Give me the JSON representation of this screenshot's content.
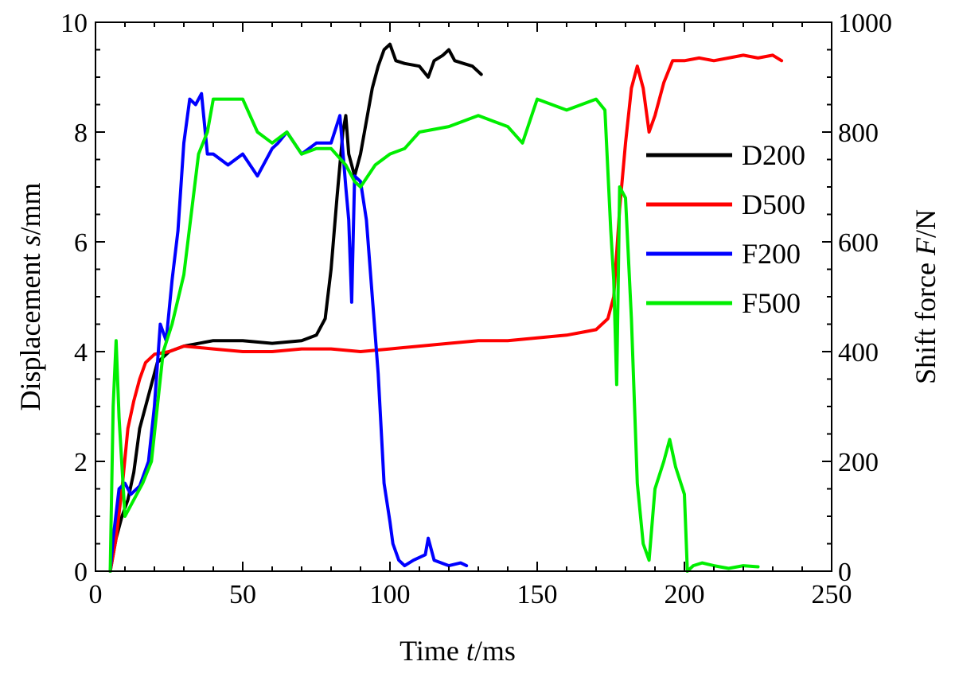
{
  "chart_data": {
    "type": "line",
    "xlabel_prefix": "Time ",
    "xlabel_var": "t",
    "xlabel_unit": "/ms",
    "ylabel_prefix": "Displacement ",
    "ylabel_var": "s",
    "ylabel_unit": "/mm",
    "y2label_prefix": "Shift force ",
    "y2label_var": "F",
    "y2label_unit": "/N",
    "xlim": [
      0,
      250
    ],
    "ylim": [
      0,
      10
    ],
    "y2lim": [
      0,
      1000
    ],
    "xticks": [
      "0",
      "50",
      "100",
      "150",
      "200",
      "250"
    ],
    "yticks": [
      "0",
      "2",
      "4",
      "6",
      "8",
      "10"
    ],
    "y2ticks": [
      "0",
      "200",
      "400",
      "600",
      "800",
      "1000"
    ],
    "grid": false,
    "legend_position": "right",
    "series": [
      {
        "name": "D200",
        "color": "#000000",
        "axis": "left",
        "points": [
          [
            5,
            0
          ],
          [
            7,
            0.6
          ],
          [
            9,
            1.0
          ],
          [
            11,
            1.3
          ],
          [
            13,
            1.8
          ],
          [
            15,
            2.6
          ],
          [
            17,
            3.0
          ],
          [
            19,
            3.4
          ],
          [
            21,
            3.8
          ],
          [
            23,
            3.9
          ],
          [
            25,
            4.0
          ],
          [
            30,
            4.1
          ],
          [
            40,
            4.2
          ],
          [
            50,
            4.2
          ],
          [
            60,
            4.15
          ],
          [
            70,
            4.2
          ],
          [
            75,
            4.3
          ],
          [
            78,
            4.6
          ],
          [
            80,
            5.5
          ],
          [
            82,
            6.8
          ],
          [
            84,
            8.0
          ],
          [
            85,
            8.3
          ],
          [
            86,
            7.6
          ],
          [
            88,
            7.2
          ],
          [
            90,
            7.6
          ],
          [
            92,
            8.2
          ],
          [
            94,
            8.8
          ],
          [
            96,
            9.2
          ],
          [
            98,
            9.5
          ],
          [
            100,
            9.6
          ],
          [
            102,
            9.3
          ],
          [
            105,
            9.25
          ],
          [
            110,
            9.2
          ],
          [
            113,
            9.0
          ],
          [
            115,
            9.3
          ],
          [
            118,
            9.4
          ],
          [
            120,
            9.5
          ],
          [
            122,
            9.3
          ],
          [
            125,
            9.25
          ],
          [
            128,
            9.2
          ],
          [
            131,
            9.05
          ]
        ]
      },
      {
        "name": "D500",
        "color": "#ff0000",
        "axis": "left",
        "points": [
          [
            5,
            0
          ],
          [
            7,
            0.6
          ],
          [
            9,
            1.5
          ],
          [
            11,
            2.6
          ],
          [
            13,
            3.1
          ],
          [
            15,
            3.5
          ],
          [
            17,
            3.8
          ],
          [
            20,
            3.95
          ],
          [
            25,
            4.0
          ],
          [
            30,
            4.1
          ],
          [
            40,
            4.05
          ],
          [
            50,
            4.0
          ],
          [
            60,
            4.0
          ],
          [
            70,
            4.05
          ],
          [
            80,
            4.05
          ],
          [
            90,
            4.0
          ],
          [
            100,
            4.05
          ],
          [
            110,
            4.1
          ],
          [
            120,
            4.15
          ],
          [
            130,
            4.2
          ],
          [
            140,
            4.2
          ],
          [
            150,
            4.25
          ],
          [
            160,
            4.3
          ],
          [
            165,
            4.35
          ],
          [
            170,
            4.4
          ],
          [
            174,
            4.6
          ],
          [
            176,
            5.0
          ],
          [
            178,
            6.6
          ],
          [
            180,
            7.8
          ],
          [
            182,
            8.8
          ],
          [
            184,
            9.2
          ],
          [
            186,
            8.8
          ],
          [
            188,
            8.0
          ],
          [
            190,
            8.3
          ],
          [
            193,
            8.9
          ],
          [
            196,
            9.3
          ],
          [
            200,
            9.3
          ],
          [
            205,
            9.35
          ],
          [
            210,
            9.3
          ],
          [
            215,
            9.35
          ],
          [
            220,
            9.4
          ],
          [
            225,
            9.35
          ],
          [
            230,
            9.4
          ],
          [
            233,
            9.3
          ]
        ]
      },
      {
        "name": "F200",
        "color": "#0000ff",
        "axis": "right",
        "points": [
          [
            5,
            0
          ],
          [
            6,
            60
          ],
          [
            8,
            150
          ],
          [
            10,
            160
          ],
          [
            12,
            140
          ],
          [
            15,
            155
          ],
          [
            18,
            200
          ],
          [
            20,
            300
          ],
          [
            22,
            450
          ],
          [
            24,
            420
          ],
          [
            26,
            530
          ],
          [
            28,
            620
          ],
          [
            30,
            780
          ],
          [
            32,
            860
          ],
          [
            34,
            850
          ],
          [
            36,
            870
          ],
          [
            38,
            760
          ],
          [
            40,
            760
          ],
          [
            45,
            740
          ],
          [
            50,
            760
          ],
          [
            55,
            720
          ],
          [
            60,
            770
          ],
          [
            62,
            780
          ],
          [
            65,
            800
          ],
          [
            70,
            760
          ],
          [
            75,
            780
          ],
          [
            80,
            780
          ],
          [
            83,
            830
          ],
          [
            85,
            700
          ],
          [
            86,
            640
          ],
          [
            87,
            490
          ],
          [
            88,
            720
          ],
          [
            90,
            710
          ],
          [
            92,
            640
          ],
          [
            94,
            500
          ],
          [
            96,
            360
          ],
          [
            98,
            160
          ],
          [
            100,
            90
          ],
          [
            101,
            50
          ],
          [
            103,
            20
          ],
          [
            105,
            10
          ],
          [
            108,
            20
          ],
          [
            112,
            30
          ],
          [
            113,
            60
          ],
          [
            115,
            20
          ],
          [
            120,
            10
          ],
          [
            124,
            15
          ],
          [
            126,
            10
          ]
        ]
      },
      {
        "name": "F500",
        "color": "#00ee00",
        "axis": "right",
        "points": [
          [
            5,
            0
          ],
          [
            6,
            300
          ],
          [
            7,
            420
          ],
          [
            8,
            280
          ],
          [
            10,
            100
          ],
          [
            13,
            130
          ],
          [
            16,
            160
          ],
          [
            19,
            200
          ],
          [
            21,
            300
          ],
          [
            23,
            400
          ],
          [
            26,
            450
          ],
          [
            30,
            540
          ],
          [
            35,
            760
          ],
          [
            38,
            800
          ],
          [
            40,
            860
          ],
          [
            45,
            860
          ],
          [
            50,
            860
          ],
          [
            55,
            800
          ],
          [
            60,
            780
          ],
          [
            65,
            800
          ],
          [
            70,
            760
          ],
          [
            75,
            770
          ],
          [
            80,
            770
          ],
          [
            85,
            740
          ],
          [
            88,
            710
          ],
          [
            90,
            700
          ],
          [
            95,
            740
          ],
          [
            100,
            760
          ],
          [
            105,
            770
          ],
          [
            110,
            800
          ],
          [
            120,
            810
          ],
          [
            130,
            830
          ],
          [
            135,
            820
          ],
          [
            140,
            810
          ],
          [
            145,
            780
          ],
          [
            150,
            860
          ],
          [
            160,
            840
          ],
          [
            165,
            850
          ],
          [
            170,
            860
          ],
          [
            173,
            840
          ],
          [
            175,
            620
          ],
          [
            176,
            530
          ],
          [
            177,
            340
          ],
          [
            178,
            700
          ],
          [
            180,
            680
          ],
          [
            182,
            460
          ],
          [
            184,
            160
          ],
          [
            186,
            50
          ],
          [
            188,
            20
          ],
          [
            190,
            150
          ],
          [
            193,
            200
          ],
          [
            195,
            240
          ],
          [
            197,
            190
          ],
          [
            200,
            140
          ],
          [
            201,
            0
          ],
          [
            203,
            10
          ],
          [
            206,
            15
          ],
          [
            210,
            10
          ],
          [
            215,
            5
          ],
          [
            220,
            10
          ],
          [
            225,
            8
          ]
        ]
      }
    ]
  }
}
